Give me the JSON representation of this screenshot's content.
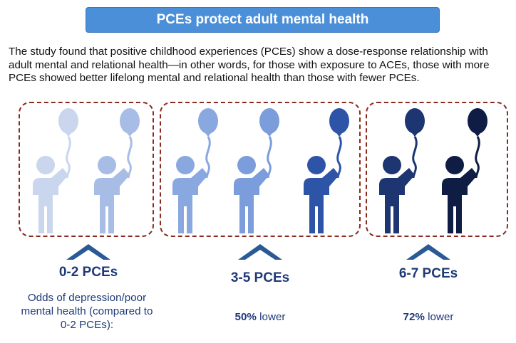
{
  "title": "PCEs protect adult mental health",
  "intro": "The study found that positive childhood experiences (PCEs) show a dose-response relationship with adult mental and relational health—in other words, for those with exposure to ACEs, those with more PCEs showed better lifelong mental and relational health than those with fewer PCEs.",
  "groups": [
    {
      "label": "0-2 PCEs"
    },
    {
      "label": "3-5 PCEs",
      "result_value": "50%",
      "result_text": " lower"
    },
    {
      "label": "6-7 PCEs",
      "result_value": "72%",
      "result_text": " lower"
    }
  ],
  "odds_caption": "Odds of depression/poor mental health (compared to 0-2 PCEs):",
  "colors": {
    "figures": [
      "#c9d6ee",
      "#a7bde6",
      "#89a8e0",
      "#7b9ddb",
      "#2e54a8",
      "#1d3570",
      "#0f1d45"
    ],
    "group_border": "#8b2a1f",
    "chevron": "#2a5a96",
    "label": "#1f3a7a"
  }
}
